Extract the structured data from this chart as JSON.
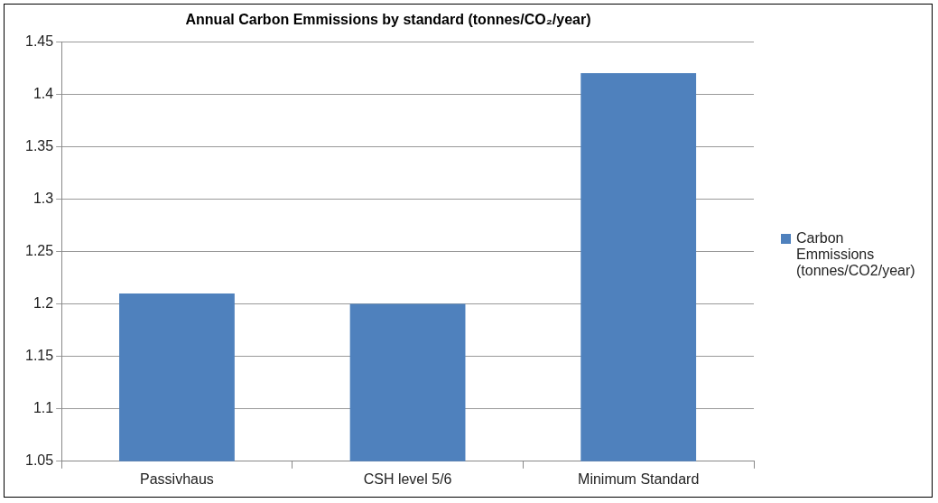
{
  "chart_data": {
    "type": "bar",
    "title": "Annual Carbon Emmissions by standard (tonnes/CO₂/year)",
    "categories": [
      "Passivhaus",
      "CSH level 5/6",
      "Minimum Standard"
    ],
    "series": [
      {
        "name": "Carbon Emmissions (tonnes/CO2/year)",
        "color": "#4f81bd",
        "values": [
          1.21,
          1.2,
          1.42
        ]
      }
    ],
    "ylim": [
      1.05,
      1.45
    ],
    "yticks": [
      1.05,
      1.1,
      1.15,
      1.2,
      1.25,
      1.3,
      1.35,
      1.4,
      1.45
    ],
    "grid": "y",
    "legend": "right"
  }
}
